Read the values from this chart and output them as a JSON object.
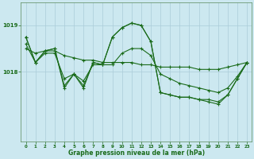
{
  "title": "Graphe pression niveau de la mer (hPa)",
  "bg_color": "#cce8f0",
  "plot_bg_color": "#cce8f0",
  "grid_color": "#aaccd8",
  "line_color": "#1a6b1a",
  "xlim": [
    -0.5,
    23.5
  ],
  "ylim": [
    1016.5,
    1019.5
  ],
  "yticks": [
    1018,
    1019
  ],
  "xticks": [
    0,
    1,
    2,
    3,
    4,
    5,
    6,
    7,
    8,
    9,
    10,
    11,
    12,
    13,
    14,
    15,
    16,
    17,
    18,
    19,
    20,
    21,
    22,
    23
  ],
  "line1_x": [
    0,
    1,
    2,
    3,
    4,
    5,
    6,
    7,
    8,
    9,
    10,
    11,
    12,
    13,
    14,
    15,
    16,
    17,
    18,
    19,
    20,
    21,
    22,
    23
  ],
  "line1_y": [
    1018.75,
    1018.2,
    1018.45,
    1018.5,
    1017.7,
    1017.95,
    1017.7,
    1018.2,
    1018.15,
    1018.75,
    1018.95,
    1019.05,
    1019.0,
    1018.65,
    1017.55,
    1017.5,
    1017.45,
    1017.45,
    1017.4,
    1017.4,
    1017.35,
    1017.5,
    1017.85,
    1018.2
  ],
  "line2_x": [
    0,
    1,
    2,
    3,
    4,
    5,
    6,
    7,
    8,
    9,
    10,
    11,
    12,
    13,
    14,
    15,
    16,
    17,
    18,
    19,
    20,
    21,
    22,
    23
  ],
  "line2_y": [
    1018.5,
    1018.4,
    1018.45,
    1018.45,
    1018.35,
    1018.3,
    1018.25,
    1018.25,
    1018.2,
    1018.2,
    1018.2,
    1018.2,
    1018.15,
    1018.15,
    1018.1,
    1018.1,
    1018.1,
    1018.1,
    1018.05,
    1018.05,
    1018.05,
    1018.1,
    1018.15,
    1018.2
  ],
  "line3_x": [
    0,
    1,
    2,
    3,
    4,
    5,
    6,
    7,
    8,
    9,
    10,
    11,
    12,
    13,
    14,
    15,
    16,
    17,
    18,
    19,
    20,
    21,
    22,
    23
  ],
  "line3_y": [
    1018.6,
    1018.2,
    1018.4,
    1018.4,
    1017.85,
    1017.95,
    1017.8,
    1018.15,
    1018.15,
    1018.15,
    1018.4,
    1018.5,
    1018.5,
    1018.35,
    1017.95,
    1017.85,
    1017.75,
    1017.7,
    1017.65,
    1017.6,
    1017.55,
    1017.65,
    1017.9,
    1018.2
  ],
  "line4_x": [
    0,
    1,
    2,
    3,
    4,
    5,
    6,
    7,
    8,
    9,
    10,
    11,
    12,
    13,
    14,
    15,
    16,
    17,
    18,
    19,
    20,
    21,
    22,
    23
  ],
  "line4_y": [
    1018.75,
    1018.2,
    1018.45,
    1018.5,
    1017.65,
    1017.95,
    1017.65,
    1018.2,
    1018.15,
    1018.75,
    1018.95,
    1019.05,
    1019.0,
    1018.65,
    1017.55,
    1017.5,
    1017.45,
    1017.45,
    1017.4,
    1017.35,
    1017.3,
    1017.5,
    1017.85,
    1018.2
  ]
}
